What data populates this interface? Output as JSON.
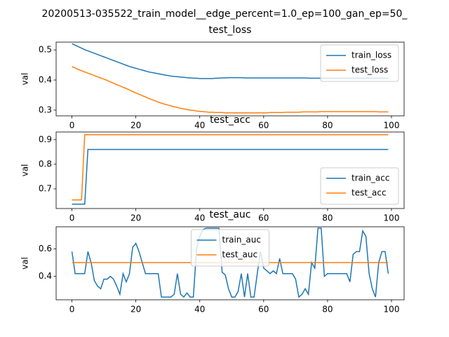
{
  "title": "20200513-035522_train_model__edge_percent=1.0_ep=100_gan_ep=50_",
  "chart_data": [
    {
      "type": "line",
      "title": "test_loss",
      "y_label": "val",
      "legend": "upper right",
      "x": [
        0,
        1,
        2,
        3,
        4,
        5,
        6,
        7,
        8,
        9,
        10,
        11,
        12,
        13,
        14,
        15,
        16,
        17,
        18,
        19,
        20,
        21,
        22,
        23,
        24,
        25,
        26,
        27,
        28,
        29,
        30,
        31,
        32,
        33,
        34,
        35,
        36,
        37,
        38,
        39,
        40,
        41,
        42,
        43,
        44,
        45,
        46,
        47,
        48,
        49,
        50,
        51,
        52,
        53,
        54,
        55,
        56,
        57,
        58,
        59,
        60,
        61,
        62,
        63,
        64,
        65,
        66,
        67,
        68,
        69,
        70,
        71,
        72,
        73,
        74,
        75,
        76,
        77,
        78,
        79,
        80,
        81,
        82,
        83,
        84,
        85,
        86,
        87,
        88,
        89,
        90,
        91,
        92,
        93,
        94,
        95,
        96,
        97,
        98,
        99
      ],
      "series": [
        {
          "name": "train_loss",
          "color": "#1f77b4",
          "values": [
            0.521,
            0.516,
            0.511,
            0.506,
            0.501,
            0.497,
            0.493,
            0.489,
            0.485,
            0.481,
            0.477,
            0.473,
            0.469,
            0.465,
            0.461,
            0.457,
            0.453,
            0.449,
            0.445,
            0.442,
            0.439,
            0.436,
            0.433,
            0.43,
            0.427,
            0.425,
            0.423,
            0.421,
            0.419,
            0.417,
            0.415,
            0.413,
            0.412,
            0.411,
            0.41,
            0.409,
            0.408,
            0.407,
            0.406,
            0.406,
            0.405,
            0.405,
            0.405,
            0.405,
            0.405,
            0.406,
            0.406,
            0.407,
            0.407,
            0.408,
            0.408,
            0.408,
            0.408,
            0.408,
            0.407,
            0.407,
            0.407,
            0.407,
            0.407,
            0.407,
            0.407,
            0.407,
            0.407,
            0.407,
            0.407,
            0.407,
            0.407,
            0.407,
            0.407,
            0.407,
            0.407,
            0.407,
            0.407,
            0.407,
            0.406,
            0.406,
            0.406,
            0.406,
            0.406,
            0.406,
            0.406,
            0.406,
            0.406,
            0.406,
            0.406,
            0.406,
            0.406,
            0.406,
            0.406,
            0.406,
            0.406,
            0.406,
            0.406,
            0.406,
            0.406,
            0.406,
            0.406,
            0.406,
            0.406,
            0.406
          ]
        },
        {
          "name": "test_loss",
          "color": "#ff7f0e",
          "values": [
            0.445,
            0.44,
            0.435,
            0.431,
            0.427,
            0.423,
            0.419,
            0.415,
            0.411,
            0.407,
            0.403,
            0.399,
            0.394,
            0.39,
            0.385,
            0.381,
            0.376,
            0.372,
            0.367,
            0.362,
            0.357,
            0.353,
            0.348,
            0.344,
            0.339,
            0.335,
            0.331,
            0.327,
            0.323,
            0.32,
            0.317,
            0.314,
            0.311,
            0.309,
            0.306,
            0.304,
            0.302,
            0.3,
            0.299,
            0.297,
            0.296,
            0.295,
            0.294,
            0.293,
            0.293,
            0.292,
            0.292,
            0.292,
            0.291,
            0.291,
            0.291,
            0.291,
            0.291,
            0.291,
            0.291,
            0.291,
            0.291,
            0.291,
            0.291,
            0.291,
            0.291,
            0.291,
            0.292,
            0.292,
            0.292,
            0.292,
            0.292,
            0.293,
            0.293,
            0.293,
            0.293,
            0.293,
            0.294,
            0.294,
            0.294,
            0.294,
            0.294,
            0.294,
            0.295,
            0.295,
            0.295,
            0.295,
            0.295,
            0.295,
            0.295,
            0.295,
            0.295,
            0.295,
            0.295,
            0.295,
            0.295,
            0.295,
            0.295,
            0.295,
            0.295,
            0.295,
            0.294,
            0.294,
            0.294,
            0.294
          ]
        }
      ],
      "xlim": [
        -4.95,
        103.95
      ],
      "xticks": [
        0,
        20,
        40,
        60,
        80,
        100
      ],
      "ylim": [
        0.281,
        0.526
      ],
      "yticks": [
        0.3,
        0.4,
        0.5
      ]
    },
    {
      "type": "line",
      "title": "test_acc",
      "y_label": "val",
      "legend": "lower right",
      "x": [
        0,
        1,
        2,
        3,
        4,
        5,
        6,
        7,
        8,
        9,
        10,
        11,
        12,
        13,
        14,
        15,
        16,
        17,
        18,
        19,
        20,
        21,
        22,
        23,
        24,
        25,
        26,
        27,
        28,
        29,
        30,
        31,
        32,
        33,
        34,
        35,
        36,
        37,
        38,
        39,
        40,
        41,
        42,
        43,
        44,
        45,
        46,
        47,
        48,
        49,
        50,
        51,
        52,
        53,
        54,
        55,
        56,
        57,
        58,
        59,
        60,
        61,
        62,
        63,
        64,
        65,
        66,
        67,
        68,
        69,
        70,
        71,
        72,
        73,
        74,
        75,
        76,
        77,
        78,
        79,
        80,
        81,
        82,
        83,
        84,
        85,
        86,
        87,
        88,
        89,
        90,
        91,
        92,
        93,
        94,
        95,
        96,
        97,
        98,
        99
      ],
      "series": [
        {
          "name": "train_acc",
          "color": "#1f77b4",
          "values": [
            0.638,
            0.638,
            0.638,
            0.638,
            0.638,
            0.86,
            0.86,
            0.86,
            0.86,
            0.86,
            0.86,
            0.86,
            0.86,
            0.86,
            0.86,
            0.86,
            0.86,
            0.86,
            0.86,
            0.86,
            0.86,
            0.86,
            0.86,
            0.86,
            0.86,
            0.86,
            0.86,
            0.86,
            0.86,
            0.86,
            0.86,
            0.86,
            0.86,
            0.86,
            0.86,
            0.86,
            0.86,
            0.86,
            0.86,
            0.86,
            0.86,
            0.86,
            0.86,
            0.86,
            0.86,
            0.86,
            0.86,
            0.86,
            0.86,
            0.86,
            0.86,
            0.86,
            0.86,
            0.86,
            0.86,
            0.86,
            0.86,
            0.86,
            0.86,
            0.86,
            0.86,
            0.86,
            0.86,
            0.86,
            0.86,
            0.86,
            0.86,
            0.86,
            0.86,
            0.86,
            0.86,
            0.86,
            0.86,
            0.86,
            0.86,
            0.86,
            0.86,
            0.86,
            0.86,
            0.86,
            0.86,
            0.86,
            0.86,
            0.86,
            0.86,
            0.86,
            0.86,
            0.86,
            0.86,
            0.86,
            0.86,
            0.86,
            0.86,
            0.86,
            0.86,
            0.86,
            0.86,
            0.86,
            0.86,
            0.86
          ]
        },
        {
          "name": "test_acc",
          "color": "#ff7f0e",
          "values": [
            0.655,
            0.655,
            0.655,
            0.655,
            0.92,
            0.92,
            0.92,
            0.92,
            0.92,
            0.92,
            0.92,
            0.92,
            0.92,
            0.92,
            0.92,
            0.92,
            0.92,
            0.92,
            0.92,
            0.92,
            0.92,
            0.92,
            0.92,
            0.92,
            0.92,
            0.92,
            0.92,
            0.92,
            0.92,
            0.92,
            0.92,
            0.92,
            0.92,
            0.92,
            0.92,
            0.92,
            0.92,
            0.92,
            0.92,
            0.92,
            0.92,
            0.92,
            0.92,
            0.92,
            0.92,
            0.92,
            0.92,
            0.92,
            0.92,
            0.92,
            0.92,
            0.92,
            0.92,
            0.92,
            0.92,
            0.92,
            0.92,
            0.92,
            0.92,
            0.92,
            0.92,
            0.92,
            0.92,
            0.92,
            0.92,
            0.92,
            0.92,
            0.92,
            0.92,
            0.92,
            0.92,
            0.92,
            0.92,
            0.92,
            0.92,
            0.92,
            0.92,
            0.92,
            0.92,
            0.92,
            0.92,
            0.92,
            0.92,
            0.92,
            0.92,
            0.92,
            0.92,
            0.92,
            0.92,
            0.92,
            0.92,
            0.92,
            0.92,
            0.92,
            0.92,
            0.92,
            0.92,
            0.92,
            0.92,
            0.92
          ]
        }
      ],
      "xlim": [
        -4.95,
        103.95
      ],
      "xticks": [
        0,
        20,
        40,
        60,
        80,
        100
      ],
      "ylim": [
        0.62,
        0.931
      ],
      "yticks": [
        0.7,
        0.8,
        0.9
      ]
    },
    {
      "type": "line",
      "title": "test_auc",
      "y_label": "val",
      "legend": "upper center",
      "x": [
        0,
        1,
        2,
        3,
        4,
        5,
        6,
        7,
        8,
        9,
        10,
        11,
        12,
        13,
        14,
        15,
        16,
        17,
        18,
        19,
        20,
        21,
        22,
        23,
        24,
        25,
        26,
        27,
        28,
        29,
        30,
        31,
        32,
        33,
        34,
        35,
        36,
        37,
        38,
        39,
        40,
        41,
        42,
        43,
        44,
        45,
        46,
        47,
        48,
        49,
        50,
        51,
        52,
        53,
        54,
        55,
        56,
        57,
        58,
        59,
        60,
        61,
        62,
        63,
        64,
        65,
        66,
        67,
        68,
        69,
        70,
        71,
        72,
        73,
        74,
        75,
        76,
        77,
        78,
        79,
        80,
        81,
        82,
        83,
        84,
        85,
        86,
        87,
        88,
        89,
        90,
        91,
        92,
        93,
        94,
        95,
        96,
        97,
        98,
        99
      ],
      "series": [
        {
          "name": "train_auc",
          "color": "#1f77b4",
          "values": [
            0.58,
            0.42,
            0.42,
            0.42,
            0.42,
            0.58,
            0.5,
            0.37,
            0.33,
            0.31,
            0.38,
            0.38,
            0.4,
            0.38,
            0.33,
            0.27,
            0.42,
            0.36,
            0.42,
            0.61,
            0.64,
            0.58,
            0.5,
            0.42,
            0.42,
            0.42,
            0.42,
            0.42,
            0.25,
            0.25,
            0.25,
            0.25,
            0.27,
            0.42,
            0.27,
            0.25,
            0.28,
            0.25,
            0.25,
            0.6,
            0.69,
            0.74,
            0.75,
            0.75,
            0.75,
            0.75,
            0.75,
            0.43,
            0.41,
            0.31,
            0.25,
            0.25,
            0.29,
            0.42,
            0.25,
            0.42,
            0.25,
            0.25,
            0.42,
            0.58,
            0.46,
            0.44,
            0.42,
            0.44,
            0.42,
            0.53,
            0.42,
            0.42,
            0.42,
            0.42,
            0.38,
            0.25,
            0.27,
            0.31,
            0.27,
            0.5,
            0.46,
            0.75,
            0.75,
            0.4,
            0.42,
            0.42,
            0.42,
            0.42,
            0.42,
            0.42,
            0.42,
            0.36,
            0.56,
            0.58,
            0.58,
            0.73,
            0.69,
            0.42,
            0.31,
            0.25,
            0.5,
            0.58,
            0.58,
            0.42
          ]
        },
        {
          "name": "test_auc",
          "color": "#ff7f0e",
          "values": [
            0.5,
            0.5,
            0.5,
            0.5,
            0.5,
            0.5,
            0.5,
            0.5,
            0.5,
            0.5,
            0.5,
            0.5,
            0.5,
            0.5,
            0.5,
            0.5,
            0.5,
            0.5,
            0.5,
            0.5,
            0.5,
            0.5,
            0.5,
            0.5,
            0.5,
            0.5,
            0.5,
            0.5,
            0.5,
            0.5,
            0.5,
            0.5,
            0.5,
            0.5,
            0.5,
            0.5,
            0.5,
            0.5,
            0.5,
            0.5,
            0.5,
            0.5,
            0.5,
            0.5,
            0.5,
            0.5,
            0.5,
            0.5,
            0.5,
            0.5,
            0.5,
            0.5,
            0.5,
            0.5,
            0.5,
            0.5,
            0.5,
            0.5,
            0.5,
            0.5,
            0.5,
            0.5,
            0.5,
            0.5,
            0.5,
            0.5,
            0.5,
            0.5,
            0.5,
            0.5,
            0.5,
            0.5,
            0.5,
            0.5,
            0.5,
            0.5,
            0.5,
            0.5,
            0.5,
            0.5,
            0.5,
            0.5,
            0.5,
            0.5,
            0.5,
            0.5,
            0.5,
            0.5,
            0.5,
            0.5,
            0.5,
            0.5,
            0.5,
            0.5,
            0.5,
            0.5,
            0.5,
            0.5,
            0.5,
            0.5
          ]
        }
      ],
      "xlim": [
        -4.95,
        103.95
      ],
      "xticks": [
        0,
        20,
        40,
        60,
        80,
        100
      ],
      "ylim": [
        0.23,
        0.76
      ],
      "yticks": [
        0.4,
        0.6
      ]
    }
  ]
}
